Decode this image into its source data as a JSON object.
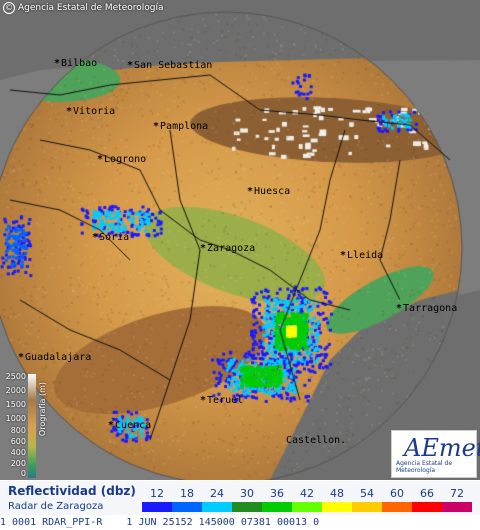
{
  "copyright": "Agencia Estatal de Meteorología",
  "cities": [
    {
      "name": "Bilbao"
    },
    {
      "name": "San Sebastian"
    },
    {
      "name": "Vitoria"
    },
    {
      "name": "Pamplona"
    },
    {
      "name": "Logrono"
    },
    {
      "name": "Huesca"
    },
    {
      "name": "Soria"
    },
    {
      "name": "Zaragoza"
    },
    {
      "name": "Lleida"
    },
    {
      "name": "Tarragona"
    },
    {
      "name": "Guadalajara"
    },
    {
      "name": "Teruel"
    },
    {
      "name": "Cuenca"
    },
    {
      "name": "Castellon."
    }
  ],
  "elevation_scale": {
    "label": "Orografía (m)",
    "ticks": [
      "2500",
      "2000",
      "1500",
      "1000",
      "800",
      "600",
      "400",
      "200",
      "0"
    ]
  },
  "logo": {
    "brand": "AEmet",
    "subtitle": "Agencia Estatal de Meteorología"
  },
  "legend": {
    "title": "Reflectividad (dbz)",
    "subtitle": "Radar de Zaragoza",
    "levels": [
      {
        "value": "12",
        "color": "#1a1aff"
      },
      {
        "value": "18",
        "color": "#0066ff"
      },
      {
        "value": "24",
        "color": "#00ccff"
      },
      {
        "value": "30",
        "color": "#228b22"
      },
      {
        "value": "36",
        "color": "#00cc00"
      },
      {
        "value": "42",
        "color": "#66ff00"
      },
      {
        "value": "48",
        "color": "#ffff00"
      },
      {
        "value": "54",
        "color": "#ffcc00"
      },
      {
        "value": "60",
        "color": "#ff6600"
      },
      {
        "value": "66",
        "color": "#ff0000"
      },
      {
        "value": "72",
        "color": "#cc0066"
      }
    ]
  },
  "status_line": "1 0001 RDAR_PPI-R    1 JUN 25152 145000 07381 00013 0"
}
